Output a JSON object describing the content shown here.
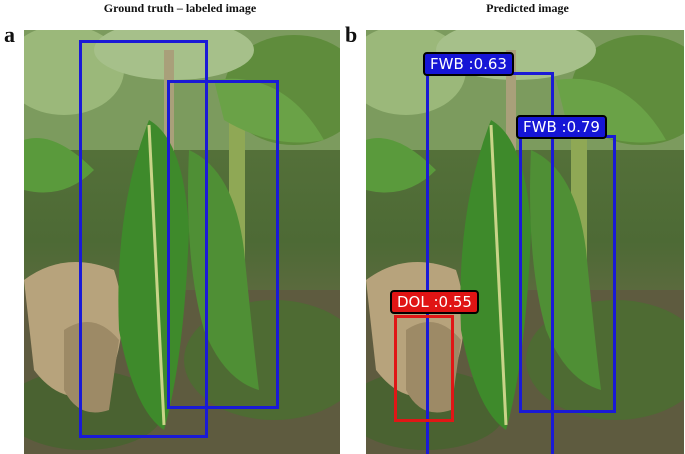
{
  "panels": {
    "left": {
      "letter": "a",
      "title": "Ground truth – labeled image"
    },
    "right": {
      "letter": "b",
      "title": "Predicted image"
    }
  },
  "predictions": [
    {
      "label": "FWB :0.63",
      "color": "#1515d6"
    },
    {
      "label": "FWB :0.79",
      "color": "#1515d6"
    },
    {
      "label": "DOL :0.55",
      "color": "#e01414"
    }
  ],
  "colors": {
    "ground_truth_box": "#1a1ad6",
    "fwb_box": "#1a1ad6",
    "dol_box": "#e01616"
  }
}
